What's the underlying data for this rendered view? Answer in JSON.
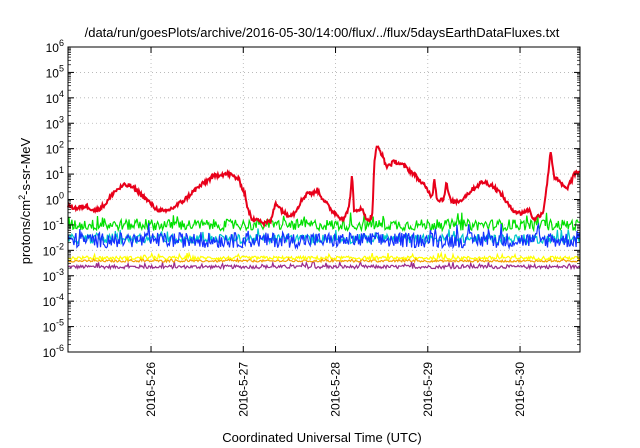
{
  "chart_data": {
    "type": "line",
    "title": "/data/run/goesPlots/archive/2016-05-30/14:00/flux/../flux/5daysEarthDataFluxes.txt",
    "xlabel": "Coordinated Universal Time (UTC)",
    "ylabel_parts": [
      "protons/cm",
      "2",
      "-s-sr-MeV"
    ],
    "yscale": "log",
    "ylim_exp": [
      -6,
      6
    ],
    "yticks": [
      {
        "base": "10",
        "exp": "-6",
        "value": -6
      },
      {
        "base": "10",
        "exp": "-5",
        "value": -5
      },
      {
        "base": "10",
        "exp": "-4",
        "value": -4
      },
      {
        "base": "10",
        "exp": "-3",
        "value": -3
      },
      {
        "base": "10",
        "exp": "-2",
        "value": -2
      },
      {
        "base": "10",
        "exp": "-1",
        "value": -1
      },
      {
        "base": "10",
        "exp": "0",
        "value": 0
      },
      {
        "base": "10",
        "exp": "1",
        "value": 1
      },
      {
        "base": "10",
        "exp": "2",
        "value": 2
      },
      {
        "base": "10",
        "exp": "3",
        "value": 3
      },
      {
        "base": "10",
        "exp": "4",
        "value": 4
      },
      {
        "base": "10",
        "exp": "5",
        "value": 5
      },
      {
        "base": "10",
        "exp": "6",
        "value": 6
      }
    ],
    "xlim_days": [
      25.05,
      30.6
    ],
    "xticks": [
      {
        "label": "2016-5-26",
        "day": 25.95
      },
      {
        "label": "2016-5-27",
        "day": 26.95
      },
      {
        "label": "2016-5-28",
        "day": 27.95
      },
      {
        "label": "2016-5-29",
        "day": 28.95
      },
      {
        "label": "2016-5-30",
        "day": 29.95
      }
    ],
    "grid": true,
    "series": [
      {
        "color": "#e8001a",
        "points_log10": [
          [
            25.05,
            -0.25
          ],
          [
            25.15,
            -0.35
          ],
          [
            25.25,
            -0.25
          ],
          [
            25.35,
            -0.45
          ],
          [
            25.45,
            -0.2
          ],
          [
            25.55,
            0.3
          ],
          [
            25.65,
            0.55
          ],
          [
            25.72,
            0.55
          ],
          [
            25.8,
            0.35
          ],
          [
            25.9,
            0.0
          ],
          [
            26.0,
            -0.35
          ],
          [
            26.1,
            -0.5
          ],
          [
            26.2,
            -0.3
          ],
          [
            26.3,
            -0.05
          ],
          [
            26.45,
            0.45
          ],
          [
            26.6,
            0.85
          ],
          [
            26.7,
            1.0
          ],
          [
            26.8,
            1.0
          ],
          [
            26.9,
            0.8
          ],
          [
            26.97,
            0.2
          ],
          [
            27.0,
            -0.4
          ],
          [
            27.05,
            -0.85
          ],
          [
            27.1,
            -0.7
          ],
          [
            27.17,
            -0.95
          ],
          [
            27.25,
            -0.85
          ],
          [
            27.3,
            -0.1
          ],
          [
            27.35,
            -0.35
          ],
          [
            27.42,
            -0.6
          ],
          [
            27.5,
            -0.55
          ],
          [
            27.58,
            -0.05
          ],
          [
            27.65,
            0.3
          ],
          [
            27.7,
            0.2
          ],
          [
            27.75,
            0.4
          ],
          [
            27.8,
            0.1
          ],
          [
            27.9,
            -0.4
          ],
          [
            28.0,
            -0.7
          ],
          [
            28.05,
            -0.75
          ],
          [
            28.1,
            -0.2
          ],
          [
            28.13,
            1.0
          ],
          [
            28.15,
            -0.5
          ],
          [
            28.2,
            -0.35
          ],
          [
            28.25,
            -0.45
          ],
          [
            28.3,
            -0.85
          ],
          [
            28.35,
            -0.6
          ],
          [
            28.37,
            1.5
          ],
          [
            28.4,
            2.1
          ],
          [
            28.45,
            1.8
          ],
          [
            28.5,
            1.3
          ],
          [
            28.6,
            1.5
          ],
          [
            28.7,
            1.3
          ],
          [
            28.8,
            1.0
          ],
          [
            28.9,
            0.6
          ],
          [
            29.0,
            0.1
          ],
          [
            29.02,
            0.9
          ],
          [
            29.05,
            0.0
          ],
          [
            29.12,
            0.0
          ],
          [
            29.15,
            0.65
          ],
          [
            29.2,
            -0.1
          ],
          [
            29.3,
            -0.05
          ],
          [
            29.45,
            0.45
          ],
          [
            29.55,
            0.7
          ],
          [
            29.65,
            0.55
          ],
          [
            29.75,
            0.2
          ],
          [
            29.85,
            -0.35
          ],
          [
            29.95,
            -0.55
          ],
          [
            30.05,
            -0.4
          ],
          [
            30.1,
            -0.8
          ],
          [
            30.2,
            -0.5
          ],
          [
            30.25,
            0.8
          ],
          [
            30.28,
            1.95
          ],
          [
            30.32,
            0.9
          ],
          [
            30.4,
            0.6
          ],
          [
            30.45,
            0.4
          ],
          [
            30.5,
            0.7
          ],
          [
            30.55,
            1.05
          ],
          [
            30.6,
            1.1
          ]
        ]
      },
      {
        "color": "#00e000",
        "baseline_log10": -1.0,
        "jitter": 0.22,
        "spike": 0.12
      },
      {
        "color": "#00c8c8",
        "baseline_log10": -1.55,
        "jitter": 0.18,
        "spike": 0.1
      },
      {
        "color": "#1430ff",
        "baseline_log10": -1.6,
        "jitter": 0.3,
        "spike": 0.15
      },
      {
        "color": "#ffff00",
        "baseline_log10": -2.3,
        "jitter": 0.07,
        "spike": 0.05
      },
      {
        "color": "#f4a000",
        "baseline_log10": -2.42,
        "jitter": 0.04,
        "spike": 0.03
      },
      {
        "color": "#9a2a8a",
        "baseline_log10": -2.65,
        "jitter": 0.07,
        "spike": 0.06
      }
    ]
  }
}
